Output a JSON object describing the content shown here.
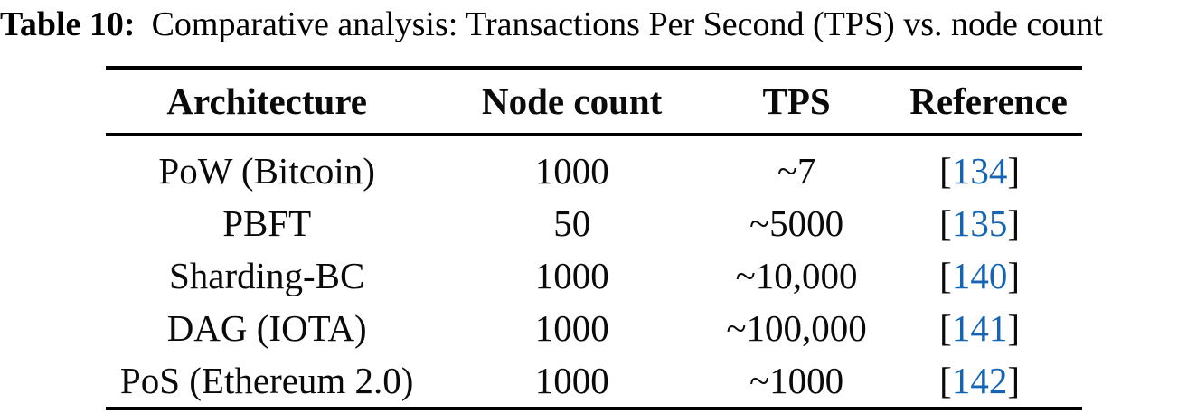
{
  "caption": {
    "label": "Table 10:",
    "text": "Comparative analysis: Transactions Per Second (TPS) vs. node count"
  },
  "colors": {
    "text": "#0a0a0a",
    "rule": "#000000",
    "citation_link_blue": "#1565b3",
    "background": "#ffffff"
  },
  "table": {
    "headers": [
      "Architecture",
      "Node count",
      "TPS",
      "Reference"
    ],
    "rows": [
      {
        "architecture": "PoW (Bitcoin)",
        "node_count": "1000",
        "tps": "~7",
        "ref": {
          "open": "[",
          "num": "134",
          "close": "]"
        }
      },
      {
        "architecture": "PBFT",
        "node_count": "50",
        "tps": "~5000",
        "ref": {
          "open": "[",
          "num": "135",
          "close": "]"
        }
      },
      {
        "architecture": "Sharding-BC",
        "node_count": "1000",
        "tps": "~10,000",
        "ref": {
          "open": "[",
          "num": "140",
          "close": "]"
        }
      },
      {
        "architecture": "DAG (IOTA)",
        "node_count": "1000",
        "tps": "~100,000",
        "ref": {
          "open": "[",
          "num": "141",
          "close": "]"
        }
      },
      {
        "architecture": "PoS (Ethereum 2.0)",
        "node_count": "1000",
        "tps": "~1000",
        "ref": {
          "open": "[",
          "num": "142",
          "close": "]"
        }
      }
    ]
  }
}
